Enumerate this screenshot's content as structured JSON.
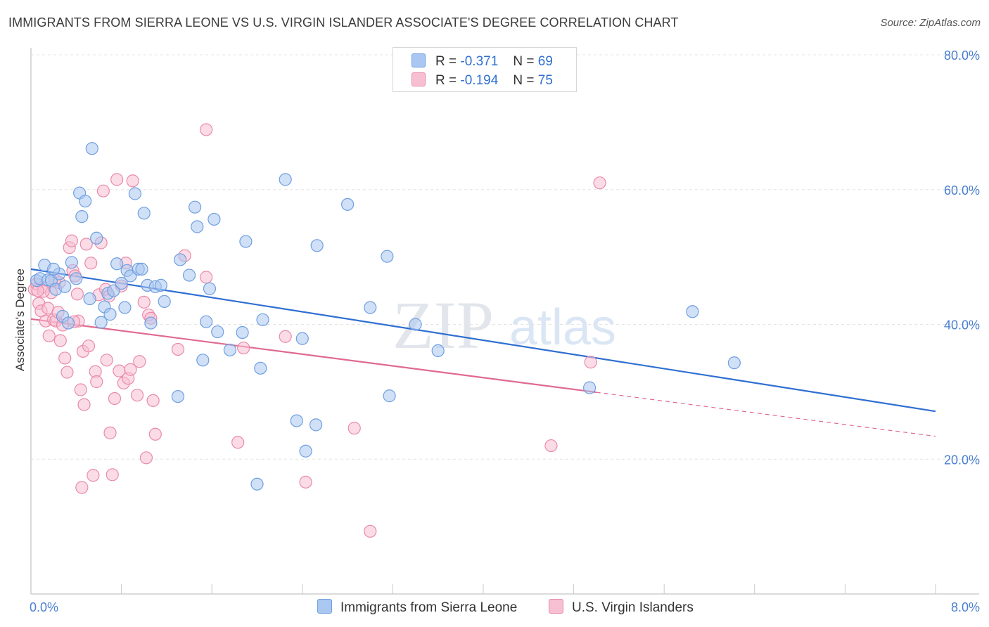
{
  "title": "IMMIGRANTS FROM SIERRA LEONE VS U.S. VIRGIN ISLANDER ASSOCIATE'S DEGREE CORRELATION CHART",
  "source": "Source: ZipAtlas.com",
  "watermark": {
    "zip": "ZIP",
    "atlas": "atlas"
  },
  "legend": {
    "r_label": "R =",
    "n_label": "N =",
    "rows": [
      {
        "r": "-0.371",
        "n": "69",
        "color": "#a9c7f0",
        "border": "#6f9fe0"
      },
      {
        "r": "-0.194",
        "n": "75",
        "color": "#f7bfd2",
        "border": "#e98aab"
      }
    ]
  },
  "bottom_legend": [
    "Immigrants from Sierra Leone",
    "U.S. Virgin Islanders"
  ],
  "chart_data": {
    "type": "scatter",
    "title": "IMMIGRANTS FROM SIERRA LEONE VS U.S. VIRGIN ISLANDER ASSOCIATE'S DEGREE CORRELATION CHART",
    "xlabel": "",
    "ylabel": "Associate's Degree",
    "xlim": [
      0,
      8
    ],
    "ylim": [
      0,
      80
    ],
    "x_tick_labels": [
      "0.0%",
      "8.0%"
    ],
    "y_ticks": [
      20,
      40,
      60,
      80
    ],
    "y_tick_labels": [
      "20.0%",
      "40.0%",
      "60.0%",
      "80.0%"
    ],
    "grid": "horizontal dashed",
    "legend_position": "top-center",
    "series": [
      {
        "name": "Immigrants from Sierra Leone",
        "color": "#a9c7f0",
        "edge": "#6f9fe0",
        "line_color": "#2f6fd1",
        "trend": {
          "x0": 0.0,
          "y0": 48.2,
          "x1": 8.0,
          "y1": 27.1,
          "solid_until": 8.0
        },
        "points": [
          [
            0.05,
            46.5
          ],
          [
            0.08,
            46.8
          ],
          [
            0.12,
            48.8
          ],
          [
            0.15,
            46.6
          ],
          [
            0.18,
            46.5
          ],
          [
            0.22,
            45.2
          ],
          [
            0.25,
            47.5
          ],
          [
            0.28,
            41.2
          ],
          [
            0.3,
            45.6
          ],
          [
            0.33,
            40.2
          ],
          [
            0.36,
            49.2
          ],
          [
            0.4,
            46.8
          ],
          [
            0.43,
            59.5
          ],
          [
            0.45,
            56.0
          ],
          [
            0.48,
            58.3
          ],
          [
            0.52,
            43.8
          ],
          [
            0.54,
            66.1
          ],
          [
            0.58,
            52.8
          ],
          [
            0.62,
            40.3
          ],
          [
            0.65,
            42.6
          ],
          [
            0.68,
            44.6
          ],
          [
            0.7,
            41.5
          ],
          [
            0.73,
            45.0
          ],
          [
            0.76,
            49.0
          ],
          [
            0.8,
            46.1
          ],
          [
            0.83,
            42.5
          ],
          [
            0.85,
            48.0
          ],
          [
            0.88,
            47.2
          ],
          [
            0.92,
            59.4
          ],
          [
            0.95,
            48.2
          ],
          [
            0.98,
            48.2
          ],
          [
            1.0,
            56.5
          ],
          [
            1.03,
            45.8
          ],
          [
            1.06,
            40.2
          ],
          [
            1.1,
            45.6
          ],
          [
            1.15,
            45.8
          ],
          [
            1.18,
            43.4
          ],
          [
            1.3,
            29.3
          ],
          [
            1.32,
            49.6
          ],
          [
            1.4,
            47.3
          ],
          [
            1.45,
            57.4
          ],
          [
            1.47,
            54.5
          ],
          [
            1.52,
            34.7
          ],
          [
            1.55,
            40.4
          ],
          [
            1.58,
            45.3
          ],
          [
            1.62,
            55.6
          ],
          [
            1.65,
            38.9
          ],
          [
            1.76,
            36.2
          ],
          [
            1.87,
            38.8
          ],
          [
            1.9,
            52.3
          ],
          [
            2.0,
            16.3
          ],
          [
            2.03,
            33.5
          ],
          [
            2.05,
            40.7
          ],
          [
            2.25,
            61.5
          ],
          [
            2.35,
            25.7
          ],
          [
            2.4,
            37.9
          ],
          [
            2.43,
            21.2
          ],
          [
            2.52,
            25.1
          ],
          [
            2.53,
            51.7
          ],
          [
            2.8,
            57.8
          ],
          [
            3.0,
            42.5
          ],
          [
            3.15,
            50.1
          ],
          [
            3.17,
            29.4
          ],
          [
            3.4,
            40.0
          ],
          [
            3.6,
            36.1
          ],
          [
            4.94,
            30.6
          ],
          [
            5.85,
            41.9
          ],
          [
            6.22,
            34.3
          ],
          [
            0.2,
            48.2
          ]
        ]
      },
      {
        "name": "U.S. Virgin Islanders",
        "color": "#f7bfd2",
        "edge": "#e98aab",
        "line_color": "#e0698f",
        "trend": {
          "x0": 0.0,
          "y0": 40.8,
          "x1": 8.0,
          "y1": 23.4,
          "solid_until": 5.0
        },
        "points": [
          [
            0.03,
            45.2
          ],
          [
            0.05,
            46.0
          ],
          [
            0.07,
            43.1
          ],
          [
            0.09,
            42.0
          ],
          [
            0.11,
            45.5
          ],
          [
            0.13,
            40.5
          ],
          [
            0.15,
            42.4
          ],
          [
            0.18,
            44.7
          ],
          [
            0.2,
            40.7
          ],
          [
            0.22,
            40.5
          ],
          [
            0.24,
            41.8
          ],
          [
            0.26,
            37.6
          ],
          [
            0.28,
            39.9
          ],
          [
            0.3,
            35.0
          ],
          [
            0.32,
            32.9
          ],
          [
            0.34,
            51.4
          ],
          [
            0.36,
            52.4
          ],
          [
            0.37,
            48.0
          ],
          [
            0.39,
            47.2
          ],
          [
            0.41,
            44.5
          ],
          [
            0.42,
            40.5
          ],
          [
            0.44,
            30.3
          ],
          [
            0.46,
            36.0
          ],
          [
            0.47,
            28.1
          ],
          [
            0.49,
            51.9
          ],
          [
            0.51,
            36.8
          ],
          [
            0.53,
            49.1
          ],
          [
            0.55,
            17.6
          ],
          [
            0.57,
            33.0
          ],
          [
            0.58,
            31.5
          ],
          [
            0.6,
            44.4
          ],
          [
            0.62,
            52.1
          ],
          [
            0.64,
            59.8
          ],
          [
            0.66,
            45.2
          ],
          [
            0.67,
            34.7
          ],
          [
            0.69,
            44.2
          ],
          [
            0.7,
            23.9
          ],
          [
            0.72,
            17.7
          ],
          [
            0.74,
            29.0
          ],
          [
            0.76,
            61.5
          ],
          [
            0.78,
            33.1
          ],
          [
            0.8,
            45.7
          ],
          [
            0.82,
            31.3
          ],
          [
            0.84,
            49.1
          ],
          [
            0.86,
            32.0
          ],
          [
            0.88,
            33.3
          ],
          [
            0.9,
            61.3
          ],
          [
            0.94,
            29.5
          ],
          [
            0.96,
            34.5
          ],
          [
            1.0,
            43.3
          ],
          [
            1.02,
            20.2
          ],
          [
            1.04,
            41.4
          ],
          [
            1.06,
            40.9
          ],
          [
            1.08,
            28.7
          ],
          [
            1.1,
            23.7
          ],
          [
            1.3,
            36.3
          ],
          [
            1.36,
            50.2
          ],
          [
            1.55,
            47.0
          ],
          [
            1.55,
            68.9
          ],
          [
            1.83,
            22.5
          ],
          [
            1.88,
            36.5
          ],
          [
            2.25,
            38.2
          ],
          [
            2.43,
            16.6
          ],
          [
            2.86,
            24.6
          ],
          [
            3.0,
            9.3
          ],
          [
            4.6,
            22.0
          ],
          [
            4.95,
            34.4
          ],
          [
            5.03,
            61.0
          ],
          [
            0.16,
            38.3
          ],
          [
            0.25,
            46.2
          ],
          [
            0.45,
            15.8
          ],
          [
            0.38,
            40.4
          ],
          [
            0.21,
            46.6
          ],
          [
            0.11,
            44.9
          ],
          [
            0.06,
            45.0
          ]
        ]
      }
    ]
  }
}
